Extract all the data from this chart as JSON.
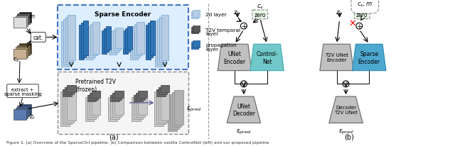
{
  "bg_color": "#ffffff",
  "legend_items": [
    {
      "label": "2d layer",
      "color": "#b8cce4",
      "edge": "#7bafd4"
    },
    {
      "label": "T2V temporal\nlayer",
      "color": "#595959",
      "edge": "#333333"
    },
    {
      "label": "propagation\nlayer",
      "color": "#2e75b6",
      "edge": "#1a4f8a"
    }
  ],
  "caption": "Figure 2. (a) Overview of the SparseCtrl pipeline. (b) Comparison between vanilla ControlNet (left) and our proposed pipeline"
}
